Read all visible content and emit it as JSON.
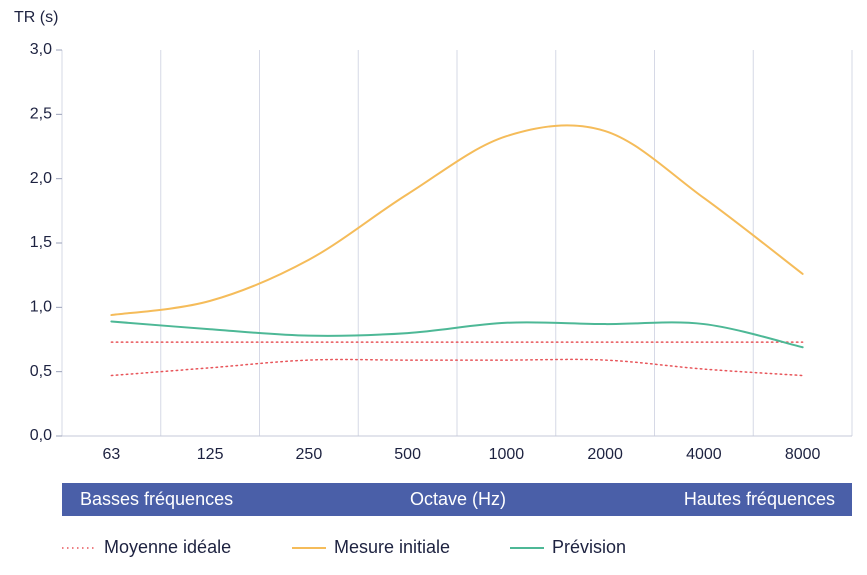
{
  "chart_data": {
    "type": "line",
    "ylabel": "TR (s)",
    "xlabel": "Octave (Hz)",
    "categories": [
      "63",
      "125",
      "250",
      "500",
      "1000",
      "2000",
      "4000",
      "8000"
    ],
    "ylim": [
      0,
      3
    ],
    "yticks": [
      "0,0",
      "0,5",
      "1,0",
      "1,5",
      "2,0",
      "2,5",
      "3,0"
    ],
    "grid": true,
    "band": {
      "left_label": "Basses fréquences",
      "center_label": "Octave (Hz)",
      "right_label": "Hautes fréquences",
      "color": "#4a5fa8"
    },
    "series": [
      {
        "name": "Moyenne idéale",
        "style": "dotted",
        "color": "#e8555a",
        "upper": [
          0.73,
          0.73,
          0.73,
          0.73,
          0.73,
          0.73,
          0.73,
          0.73
        ],
        "lower": [
          0.47,
          0.53,
          0.59,
          0.59,
          0.59,
          0.59,
          0.52,
          0.47
        ]
      },
      {
        "name": "Mesure initiale",
        "style": "solid",
        "color": "#f5bc5a",
        "values": [
          0.94,
          1.05,
          1.37,
          1.88,
          2.33,
          2.37,
          1.85,
          1.26
        ]
      },
      {
        "name": "Prévision",
        "style": "solid",
        "color": "#4db896",
        "values": [
          0.89,
          0.83,
          0.78,
          0.8,
          0.88,
          0.87,
          0.87,
          0.69
        ]
      }
    ]
  }
}
